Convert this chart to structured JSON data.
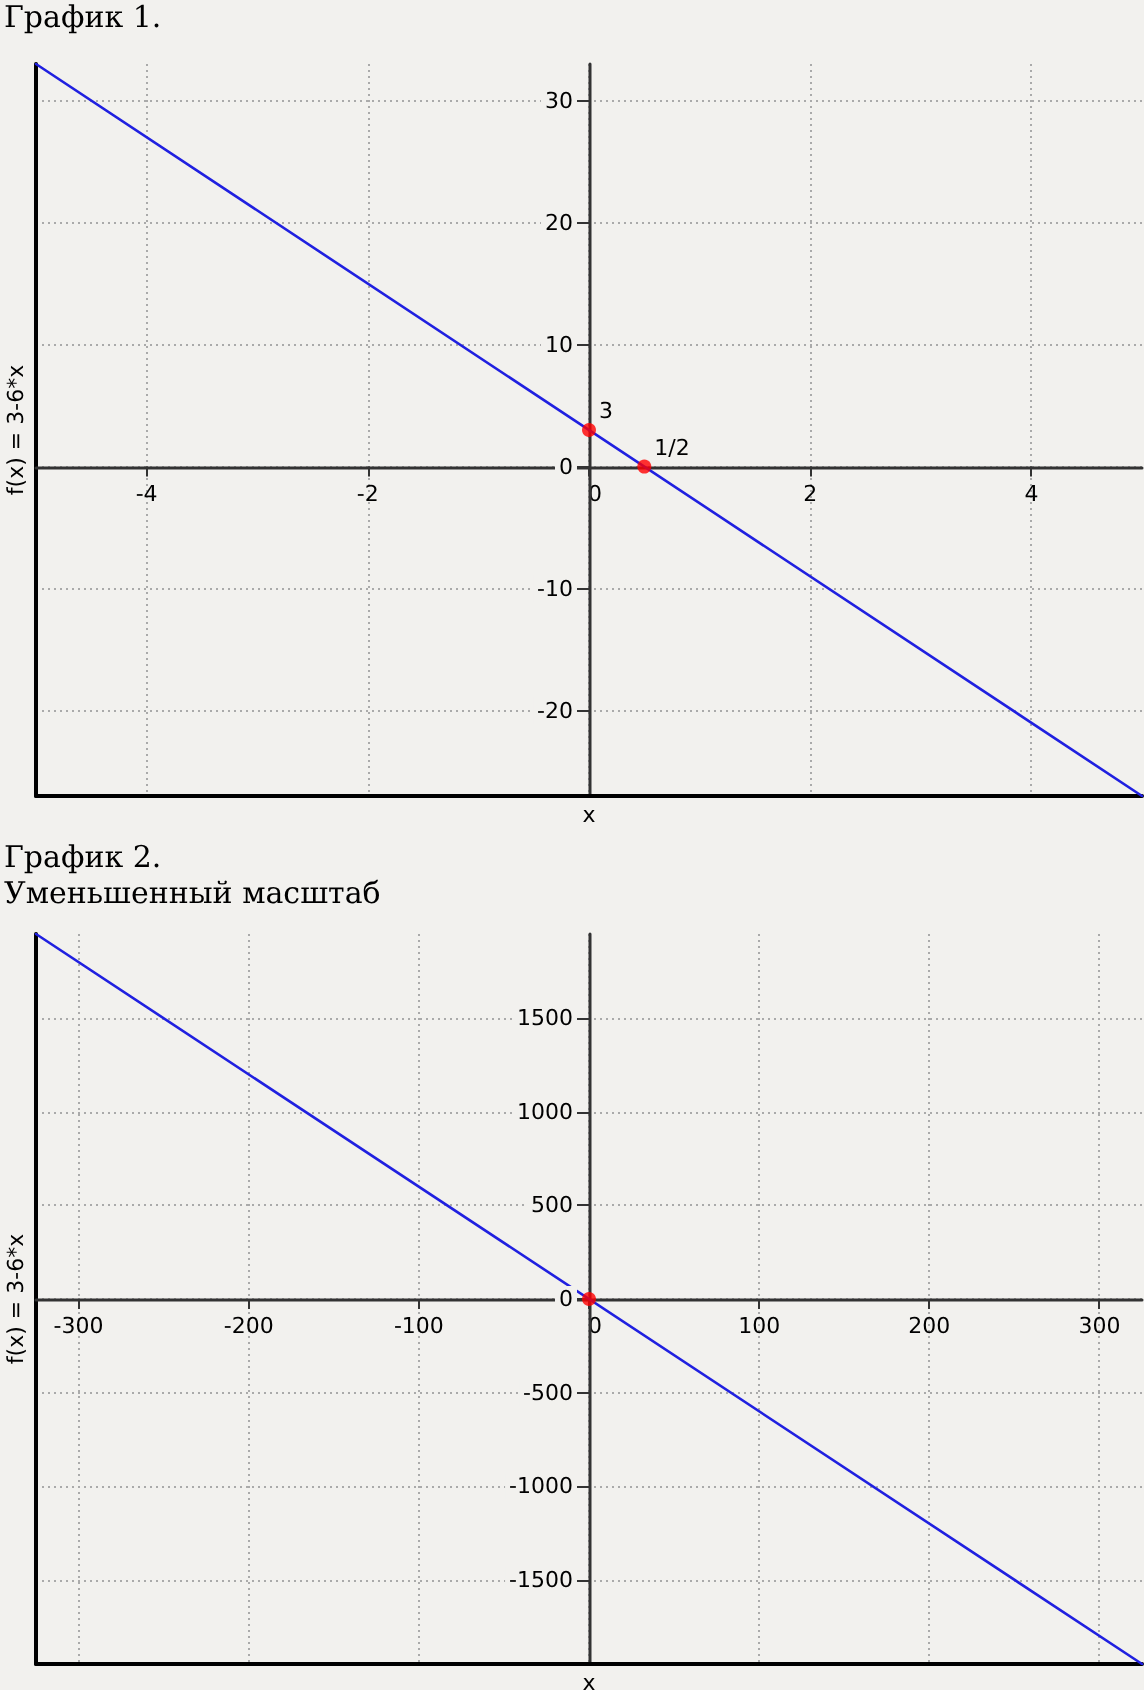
{
  "chart_data": [
    {
      "type": "line",
      "title": "График 1.",
      "xlabel": "x",
      "ylabel": "f(x) = 3-6*x",
      "xlim": [
        -5,
        5
      ],
      "ylim": [
        -27,
        33
      ],
      "xticks": [
        -4,
        -2,
        0,
        2,
        4
      ],
      "yticks": [
        -20,
        -10,
        0,
        10,
        20,
        30
      ],
      "grid": true,
      "series": [
        {
          "type": "line",
          "x": [
            -5,
            5
          ],
          "values": [
            33,
            -27
          ],
          "color": "#2020e0",
          "marker": "none",
          "line_style": "solid"
        },
        {
          "type": "scatter",
          "x": [
            0,
            0.5
          ],
          "values": [
            3,
            0
          ],
          "color": "#ff0000",
          "marker": "circle"
        }
      ],
      "annotations": [
        {
          "text": "3",
          "x": 0,
          "y": 3
        },
        {
          "text": "1/2",
          "x": 0.5,
          "y": 0
        }
      ]
    },
    {
      "type": "line",
      "title": "График 2.",
      "subtitle": "Уменьшенный масштаб",
      "xlabel": "x",
      "ylabel": "f(x) = 3-6*x",
      "xlim": [
        -325,
        325
      ],
      "ylim": [
        -1950,
        1950
      ],
      "xticks": [
        -300,
        -200,
        -100,
        0,
        100,
        200,
        300
      ],
      "yticks": [
        -1500,
        -1000,
        -500,
        0,
        500,
        1000,
        1500
      ],
      "grid": true,
      "series": [
        {
          "type": "line",
          "x": [
            -325,
            325
          ],
          "values": [
            1950,
            -1950
          ],
          "color": "#2020e0",
          "marker": "none",
          "line_style": "solid"
        },
        {
          "type": "scatter",
          "x": [
            0
          ],
          "values": [
            0
          ],
          "color": "#ff0000",
          "marker": "circle"
        }
      ]
    }
  ]
}
